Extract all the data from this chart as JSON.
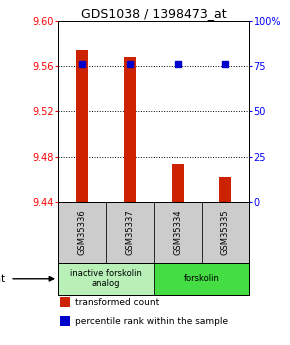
{
  "title": "GDS1038 / 1398473_at",
  "samples": [
    "GSM35336",
    "GSM35337",
    "GSM35334",
    "GSM35335"
  ],
  "bar_values": [
    9.574,
    9.568,
    9.474,
    9.462
  ],
  "bar_base": 9.44,
  "percentile_values": [
    76,
    76,
    76,
    76
  ],
  "ylim_left": [
    9.44,
    9.6
  ],
  "ylim_right": [
    0,
    100
  ],
  "yticks_left": [
    9.44,
    9.48,
    9.52,
    9.56,
    9.6
  ],
  "yticks_right": [
    0,
    25,
    50,
    75,
    100
  ],
  "ytick_labels_right": [
    "0",
    "25",
    "50",
    "75",
    "100%"
  ],
  "bar_color": "#cc2200",
  "dot_color": "#0000cc",
  "grid_color": "#000000",
  "groups": [
    {
      "label": "inactive forskolin\nanalog",
      "samples": [
        "GSM35336",
        "GSM35337"
      ],
      "color": "#b8f0b8"
    },
    {
      "label": "forskolin",
      "samples": [
        "GSM35334",
        "GSM35335"
      ],
      "color": "#44dd44"
    }
  ],
  "legend_items": [
    {
      "color": "#cc2200",
      "label": "transformed count"
    },
    {
      "color": "#0000cc",
      "label": "percentile rank within the sample"
    }
  ],
  "title_fontsize": 9,
  "tick_fontsize": 7,
  "label_fontsize": 6,
  "bar_width": 0.25,
  "background_color": "#ffffff",
  "sample_box_color": "#cccccc"
}
